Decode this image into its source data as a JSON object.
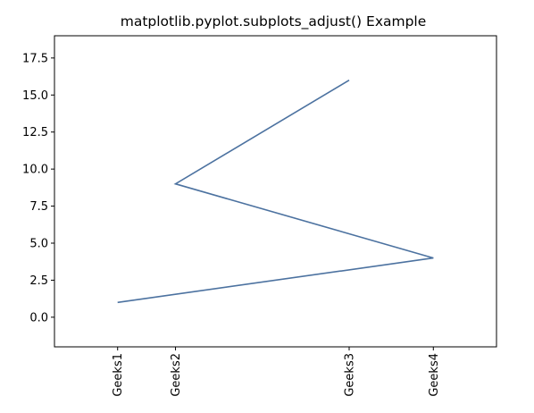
{
  "chart_data": {
    "type": "line",
    "title": "matplotlib.pyplot.subplots_adjust() Example",
    "xlabel": "",
    "ylabel": "",
    "x_numeric": [
      1,
      2,
      3,
      4
    ],
    "x_labels": [
      "Geeks1",
      "Geeks2",
      "Geeks3",
      "Geeks4"
    ],
    "x_tick_positions": [
      1,
      1.55,
      3.2,
      4
    ],
    "series": [
      {
        "x": [
          1,
          4,
          1.55,
          3.2
        ],
        "values": [
          1,
          4,
          9,
          16
        ],
        "color": "#4c72a0"
      }
    ],
    "xlim": [
      0.4,
      4.6
    ],
    "ylim": [
      -2,
      19
    ],
    "y_ticks": [
      0.0,
      2.5,
      5.0,
      7.5,
      10.0,
      12.5,
      15.0,
      17.5
    ],
    "y_tick_labels": [
      "0.0",
      "2.5",
      "5.0",
      "7.5",
      "10.0",
      "12.5",
      "15.0",
      "17.5"
    ],
    "grid": false,
    "legend": "none"
  }
}
